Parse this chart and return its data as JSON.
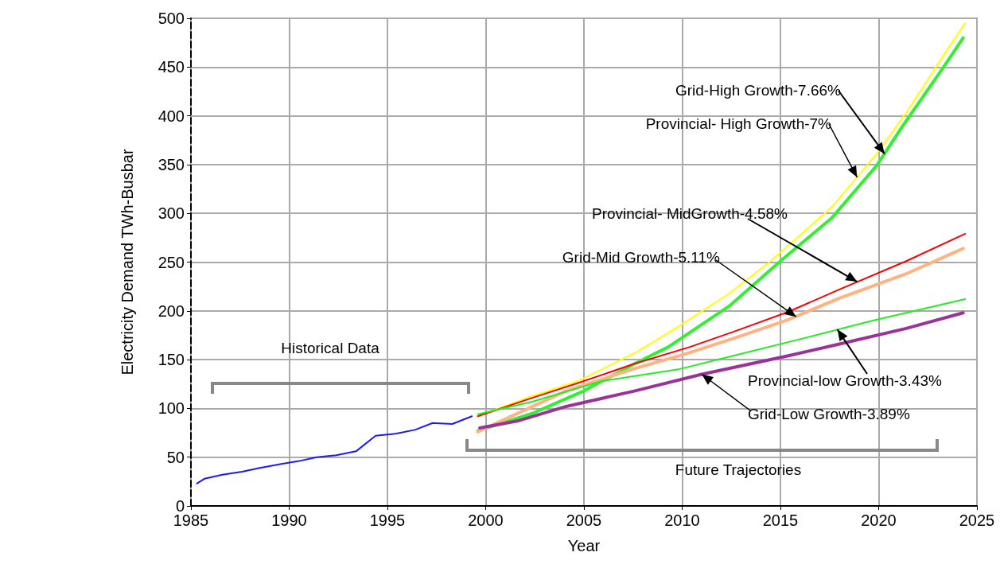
{
  "chart_data": {
    "type": "line",
    "xlabel": "Year",
    "ylabel": "Electricity Demand TWh-Busbar",
    "xlim": [
      1985,
      2025
    ],
    "xticks": [
      1985,
      1990,
      1995,
      2000,
      2005,
      2010,
      2015,
      2020,
      2025
    ],
    "ylim": [
      0,
      500
    ],
    "yticks": [
      0,
      50,
      100,
      150,
      200,
      250,
      300,
      350,
      400,
      450,
      500
    ],
    "grid": true,
    "marker": "none",
    "line_style": "solid",
    "series": [
      {
        "color": "#1a1aff",
        "x": [
          1985.3,
          1985.7,
          1986.6,
          1987.6,
          1988.5,
          1989.6,
          1990.5,
          1991.4,
          1992.4,
          1993.4,
          1994.4,
          1995.4,
          1996.4,
          1997.3,
          1998.3,
          1999.3
        ],
        "values": [
          23,
          28,
          32,
          35,
          39,
          43,
          46,
          50,
          52,
          56,
          72,
          74,
          78,
          85,
          84,
          92
        ]
      },
      {
        "color": "#ffff00",
        "x": [
          1999.6,
          2002.4,
          2004.7,
          2007.6,
          2009.5,
          2012.4,
          2014.5,
          2017.6,
          2019.9,
          2021.4,
          2023.3,
          2024.4
        ],
        "values": [
          92,
          113,
          128,
          157,
          180,
          218,
          251,
          306,
          361,
          403,
          462,
          495
        ]
      },
      {
        "color": "#33ee33",
        "x": [
          1999.6,
          2002.4,
          2005,
          2007.6,
          2009.3,
          2012.4,
          2015,
          2017.6,
          2019.9,
          2021.2,
          2023.3,
          2024.3
        ],
        "values": [
          77,
          95,
          118,
          146,
          163,
          205,
          251,
          295,
          349,
          389,
          450,
          480
        ]
      },
      {
        "color": "#ff0000",
        "x": [
          1999.6,
          2002.4,
          2004.7,
          2007.6,
          2010.4,
          2012.8,
          2015.4,
          2018,
          2021.4,
          2024.4
        ],
        "values": [
          92,
          111,
          126,
          146,
          163,
          180,
          199,
          222,
          251,
          279
        ]
      },
      {
        "color": "#ffb380",
        "x": [
          1999.6,
          2004.1,
          2007.6,
          2010.2,
          2012.8,
          2015.4,
          2018,
          2021.4,
          2024.3
        ],
        "values": [
          76,
          118,
          141,
          156,
          173,
          191,
          213,
          238,
          264
        ]
      },
      {
        "color": "#22ee22",
        "x": [
          1999.6,
          2002.4,
          2005.9,
          2009.8,
          2012.8,
          2016.2,
          2019.7,
          2024.4
        ],
        "values": [
          94,
          107,
          128,
          140,
          155,
          172,
          190,
          212
        ]
      },
      {
        "color": "#993399",
        "x": [
          1999.7,
          2001.6,
          2004.1,
          2007.6,
          2011,
          2015.4,
          2018,
          2021.4,
          2024.3
        ],
        "values": [
          80,
          87,
          102,
          118,
          135,
          154,
          166,
          182,
          198
        ]
      }
    ],
    "annotations": [
      {
        "text": "Grid-High Growth-7.66%",
        "x": 2020.3,
        "y": 361
      },
      {
        "text": "Provincial- High Growth-7%",
        "x": 2018.9,
        "y": 337
      },
      {
        "text": "Provincial- MidGrowth-4.58%",
        "x": 2018.9,
        "y": 230
      },
      {
        "text": "Grid-Mid Growth-5.11%",
        "x": 2015.8,
        "y": 194
      },
      {
        "text": "Provincial-low Growth-3.43%",
        "x": 2017.9,
        "y": 181
      },
      {
        "text": "Grid-Low Growth-3.89%",
        "x": 2011,
        "y": 135
      },
      "Historical Data",
      "Future Trajectories"
    ]
  }
}
